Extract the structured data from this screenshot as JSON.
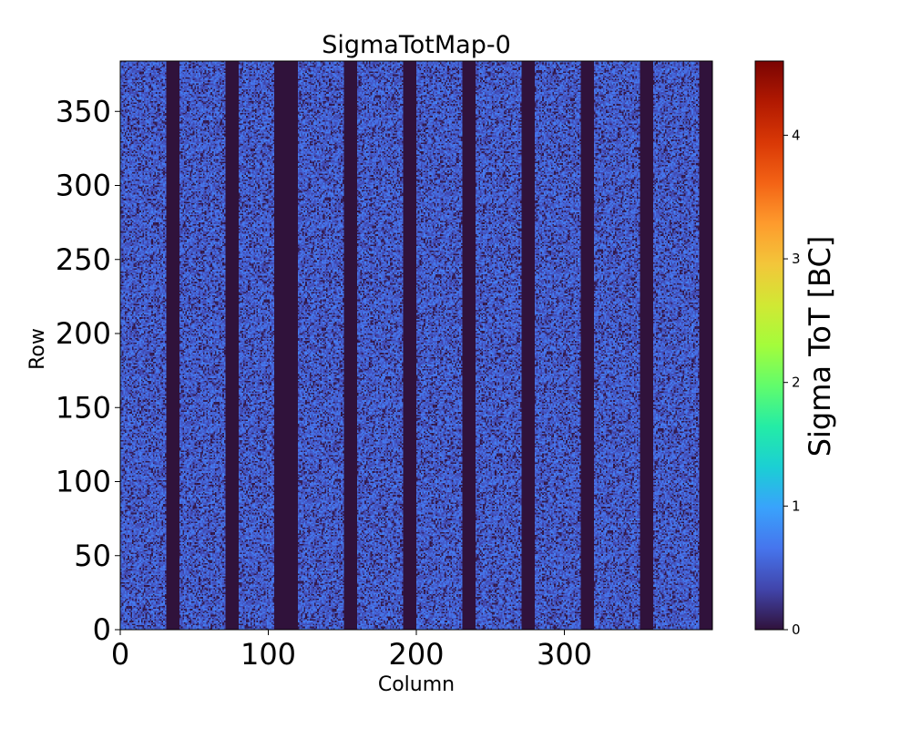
{
  "chart_data": {
    "type": "heatmap",
    "title": "SigmaTotMap-0",
    "xlabel": "Column",
    "ylabel": "Row",
    "xlim": [
      0,
      400
    ],
    "ylim": [
      0,
      384
    ],
    "x_ticks": [
      0,
      100,
      200,
      300
    ],
    "y_ticks": [
      0,
      50,
      100,
      150,
      200,
      250,
      300,
      350
    ],
    "x_tick_labels": [
      "0",
      "100",
      "200",
      "300"
    ],
    "y_tick_labels": [
      "0",
      "50",
      "100",
      "150",
      "200",
      "250",
      "300",
      "350"
    ],
    "colorbar": {
      "label": "Sigma ToT [BC]",
      "range": [
        0,
        4.6
      ],
      "ticks": [
        0,
        1,
        2,
        3,
        4
      ],
      "tick_labels": [
        "0",
        "1",
        "2",
        "3",
        "4"
      ],
      "colormap": "turbo",
      "colors": [
        "#30123b",
        "#4145ab",
        "#4675ed",
        "#39a2fc",
        "#1bcfd4",
        "#24eca6",
        "#61fc6c",
        "#a4fc3b",
        "#d1e834",
        "#f3c63a",
        "#fe9b2d",
        "#f36315",
        "#d93806",
        "#b11901",
        "#7a0403"
      ]
    },
    "masked_column_ranges": [
      [
        31,
        40
      ],
      [
        71,
        80
      ],
      [
        104,
        120
      ],
      [
        151,
        160
      ],
      [
        191,
        200
      ],
      [
        231,
        240
      ],
      [
        271,
        280
      ],
      [
        311,
        320
      ],
      [
        351,
        360
      ],
      [
        391,
        400
      ]
    ],
    "masked_value": 0.0,
    "active_region_value_range": [
      0.3,
      0.75
    ],
    "active_region_mean": 0.5
  }
}
